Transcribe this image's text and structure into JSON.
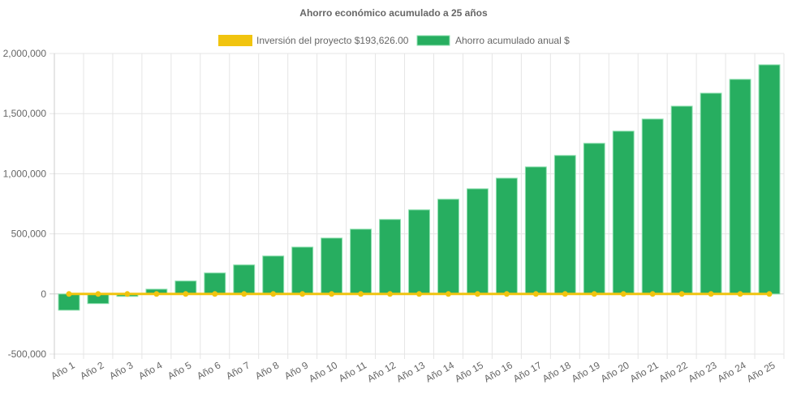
{
  "chart_data": {
    "type": "bar",
    "title": "Ahorro económico acumulado a 25 años",
    "legend_position": "top",
    "grid": true,
    "ylim": [
      -500000,
      2000000
    ],
    "yticks": [
      "2,000,000",
      "1,500,000",
      "1,000,000",
      "500,000",
      "0",
      "-500,000"
    ],
    "ytick_values": [
      2000000,
      1500000,
      1000000,
      500000,
      0,
      -500000
    ],
    "categories": [
      "Año 1",
      "Año 2",
      "Año 3",
      "Año 4",
      "Año 5",
      "Año 6",
      "Año 7",
      "Año 8",
      "Año 9",
      "Año 10",
      "Año 11",
      "Año 12",
      "Año 13",
      "Año 14",
      "Año 15",
      "Año 16",
      "Año 17",
      "Año 18",
      "Año 19",
      "Año 20",
      "Año 21",
      "Año 22",
      "Año 23",
      "Año 24",
      "Año 25"
    ],
    "series": [
      {
        "name": "Inversión del proyecto $193,626.00",
        "type": "line",
        "color": "#f1c40f",
        "values": [
          0,
          0,
          0,
          0,
          0,
          0,
          0,
          0,
          0,
          0,
          0,
          0,
          0,
          0,
          0,
          0,
          0,
          0,
          0,
          0,
          0,
          0,
          0,
          0,
          0
        ]
      },
      {
        "name": "Ahorro acumulado anual $",
        "type": "bar",
        "color": "#27ae60",
        "values": [
          -135000,
          -80000,
          -20000,
          40000,
          108000,
          175000,
          242000,
          316000,
          390000,
          465000,
          539000,
          620000,
          700000,
          788000,
          875000,
          963000,
          1057000,
          1152000,
          1253000,
          1354000,
          1455000,
          1562000,
          1670000,
          1785000,
          1906000
        ]
      }
    ]
  }
}
